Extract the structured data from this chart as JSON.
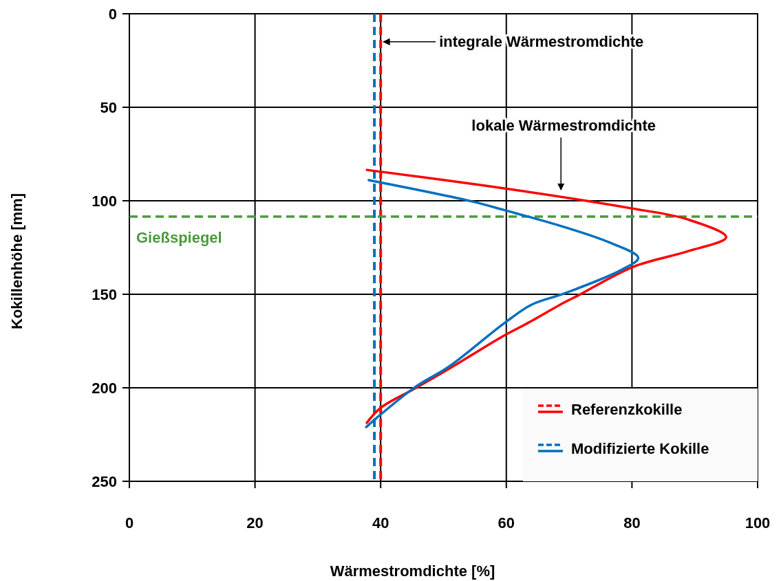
{
  "chart_data": {
    "type": "line",
    "xlabel": "Wärmestromdichte [%]",
    "ylabel": "Kokillenhöhe [mm]",
    "xlim": [
      0,
      100
    ],
    "xticks": [
      0,
      20,
      40,
      60,
      80,
      100
    ],
    "ylim": [
      250,
      0
    ],
    "yticks": [
      0,
      50,
      100,
      150,
      200,
      250
    ],
    "grid": true,
    "legend": "bottom right",
    "marker": "none",
    "line_style": "solid",
    "series": [
      {
        "name": "Referenzkokille",
        "color": "#ff0000",
        "x": [
          37.8,
          59.7,
          79.8,
          88.9,
          95,
          88.9,
          80.2,
          71.4,
          69.2,
          63.4,
          59.7,
          50.3,
          45.1,
          40,
          37.8
        ],
        "values": [
          83.5,
          93.4,
          104,
          110,
          119.5,
          127,
          135.3,
          150.7,
          154.4,
          165.4,
          172,
          191,
          201,
          210.7,
          218.7
        ]
      },
      {
        "name": "Modifizierte Kokille",
        "color": "#0070c0",
        "x": [
          38.1,
          54.6,
          59.7,
          69.2,
          76.5,
          81,
          78.3,
          69.2,
          64,
          59.7,
          50.9,
          45.5,
          40,
          37.7
        ],
        "values": [
          89,
          100.4,
          105,
          114,
          122.4,
          130.5,
          137,
          149.6,
          155.6,
          165.4,
          188.6,
          199.6,
          214.3,
          221
        ]
      }
    ],
    "ref_lines": [
      {
        "axis": "x",
        "value": 40,
        "color": "#ff0000",
        "line_style": "dashed"
      },
      {
        "axis": "x",
        "value": 39,
        "color": "#0070c0",
        "line_style": "dashed"
      },
      {
        "axis": "y",
        "value": 108.5,
        "label": "Gießspiegel",
        "color": "#4a9a3c",
        "line_style": "dashed"
      }
    ],
    "annotations": [
      {
        "text": "integrale Wärmestromdichte",
        "x": 40,
        "y": 15
      },
      {
        "text": "lokale Wärmestromdichte",
        "x": 68.7,
        "y": 95.6
      }
    ]
  }
}
